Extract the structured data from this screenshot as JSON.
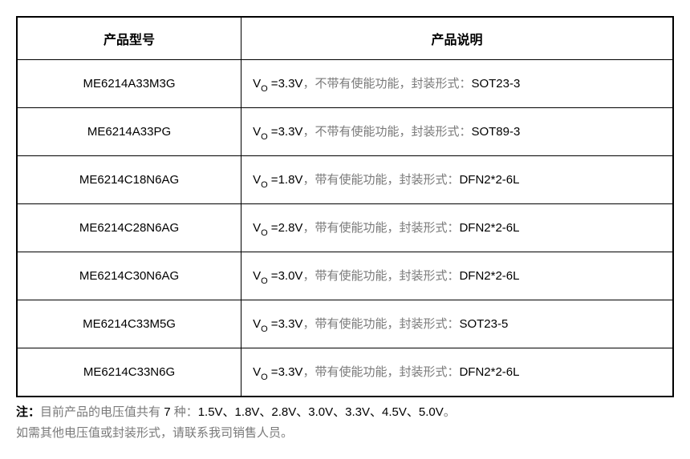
{
  "table": {
    "headers": {
      "model": "产品型号",
      "description": "产品说明"
    },
    "rows": [
      {
        "model": "ME6214A33M3G",
        "vo_prefix": "V",
        "vo_sub": "O",
        "vo_value": " =3.3V",
        "gray_desc": "，不带有使能功能，封装形式：",
        "package": "SOT23-3"
      },
      {
        "model": "ME6214A33PG",
        "vo_prefix": "V",
        "vo_sub": "O",
        "vo_value": " =3.3V",
        "gray_desc": "，不带有使能功能，封装形式：",
        "package": "SOT89-3"
      },
      {
        "model": "ME6214C18N6AG",
        "vo_prefix": "V",
        "vo_sub": "O",
        "vo_value": " =1.8V",
        "gray_desc": "，带有使能功能，封装形式：",
        "package": "DFN2*2-6L"
      },
      {
        "model": "ME6214C28N6AG",
        "vo_prefix": "V",
        "vo_sub": "O",
        "vo_value": " =2.8V",
        "gray_desc": "，带有使能功能，封装形式：",
        "package": "DFN2*2-6L"
      },
      {
        "model": "ME6214C30N6AG",
        "vo_prefix": "V",
        "vo_sub": "O",
        "vo_value": " =3.0V",
        "gray_desc": "，带有使能功能，封装形式：",
        "package": "DFN2*2-6L"
      },
      {
        "model": "ME6214C33M5G",
        "vo_prefix": "V",
        "vo_sub": "O",
        "vo_value": " =3.3V",
        "gray_desc": "，带有使能功能，封装形式：",
        "package": "SOT23-5"
      },
      {
        "model": "ME6214C33N6G",
        "vo_prefix": "V",
        "vo_sub": "O",
        "vo_value": " =3.3V",
        "gray_desc": "，带有使能功能，封装形式：",
        "package": "DFN2*2-6L"
      }
    ]
  },
  "note": {
    "bold_label": "注：",
    "line1_gray": "目前产品的电压值共有 ",
    "line1_black_a": "7",
    "line1_gray_b": " 种：",
    "line1_black_b": "1.5V、1.8V、2.8V、3.0V、3.3V、4.5V、5.0V",
    "line1_gray_c": "。",
    "line2_gray": "如需其他电压值或封装形式，请联系我司销售人员。"
  },
  "colors": {
    "border": "#000000",
    "text": "#000000",
    "gray": "#7a7a7a",
    "background": "#ffffff"
  }
}
